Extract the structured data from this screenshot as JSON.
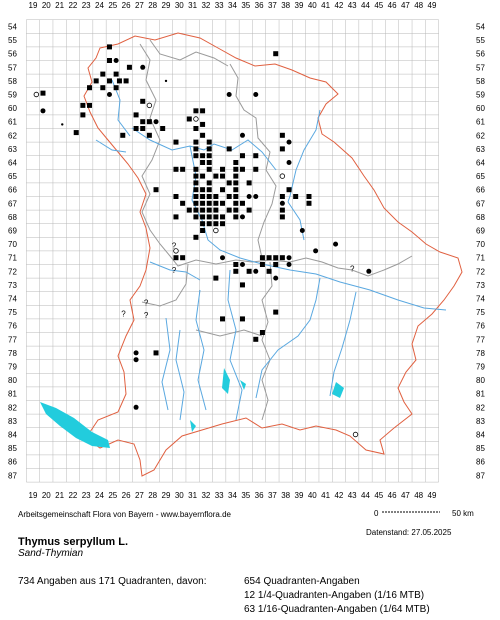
{
  "map": {
    "x_labels": [
      "19",
      "20",
      "21",
      "22",
      "23",
      "24",
      "25",
      "26",
      "27",
      "28",
      "29",
      "30",
      "31",
      "32",
      "33",
      "34",
      "35",
      "36",
      "37",
      "38",
      "39",
      "40",
      "41",
      "42",
      "43",
      "44",
      "45",
      "46",
      "47",
      "48",
      "49"
    ],
    "y_labels": [
      "54",
      "55",
      "56",
      "57",
      "58",
      "59",
      "60",
      "61",
      "62",
      "63",
      "64",
      "65",
      "66",
      "67",
      "68",
      "69",
      "70",
      "71",
      "72",
      "73",
      "74",
      "75",
      "76",
      "77",
      "78",
      "79",
      "80",
      "81",
      "82",
      "83",
      "84",
      "85",
      "86",
      "87"
    ],
    "colors": {
      "grid": "#b8b8b8",
      "border": "#e06040",
      "districts": "#9a9a9a",
      "rivers": "#5aa8e0",
      "lakes": "#22ccdd",
      "marker": "#000000"
    },
    "question_mark": "?",
    "scale": {
      "start": "0",
      "end": "50 km"
    },
    "markers": [
      {
        "x": 24.75,
        "y": 55.5,
        "t": "sq"
      },
      {
        "x": 37.25,
        "y": 56.0,
        "t": "sq"
      },
      {
        "x": 24.75,
        "y": 56.5,
        "t": "sq"
      },
      {
        "x": 25.25,
        "y": 56.5,
        "t": "dot"
      },
      {
        "x": 26.25,
        "y": 57.0,
        "t": "sq"
      },
      {
        "x": 27.25,
        "y": 57.0,
        "t": "dot"
      },
      {
        "x": 24.25,
        "y": 57.5,
        "t": "sq"
      },
      {
        "x": 25.25,
        "y": 57.5,
        "t": "sq"
      },
      {
        "x": 26.0,
        "y": 58.0,
        "t": "sq"
      },
      {
        "x": 23.75,
        "y": 58.0,
        "t": "sq"
      },
      {
        "x": 24.75,
        "y": 58.0,
        "t": "sq"
      },
      {
        "x": 25.5,
        "y": 58.0,
        "t": "sq"
      },
      {
        "x": 29.0,
        "y": 58.0,
        "t": "small"
      },
      {
        "x": 23.25,
        "y": 58.5,
        "t": "sq"
      },
      {
        "x": 24.25,
        "y": 58.5,
        "t": "sq"
      },
      {
        "x": 25.25,
        "y": 58.5,
        "t": "sq"
      },
      {
        "x": 19.75,
        "y": 58.9,
        "t": "sq"
      },
      {
        "x": 19.25,
        "y": 59.0,
        "t": "open"
      },
      {
        "x": 24.75,
        "y": 59.0,
        "t": "dot"
      },
      {
        "x": 33.75,
        "y": 59.0,
        "t": "dot"
      },
      {
        "x": 35.75,
        "y": 59.0,
        "t": "dot"
      },
      {
        "x": 27.25,
        "y": 59.5,
        "t": "sq"
      },
      {
        "x": 22.75,
        "y": 59.8,
        "t": "sq"
      },
      {
        "x": 23.25,
        "y": 59.8,
        "t": "sq"
      },
      {
        "x": 27.75,
        "y": 59.8,
        "t": "open"
      },
      {
        "x": 19.75,
        "y": 60.2,
        "t": "dot"
      },
      {
        "x": 22.75,
        "y": 60.5,
        "t": "sq"
      },
      {
        "x": 31.25,
        "y": 60.2,
        "t": "sq"
      },
      {
        "x": 31.75,
        "y": 60.2,
        "t": "sq"
      },
      {
        "x": 26.75,
        "y": 60.5,
        "t": "sq"
      },
      {
        "x": 30.75,
        "y": 60.8,
        "t": "sq"
      },
      {
        "x": 31.25,
        "y": 60.8,
        "t": "open"
      },
      {
        "x": 27.25,
        "y": 61.0,
        "t": "sq"
      },
      {
        "x": 27.75,
        "y": 61.0,
        "t": "sq"
      },
      {
        "x": 28.25,
        "y": 61.0,
        "t": "dot"
      },
      {
        "x": 21.2,
        "y": 61.2,
        "t": "small"
      },
      {
        "x": 31.75,
        "y": 61.2,
        "t": "sq"
      },
      {
        "x": 26.75,
        "y": 61.5,
        "t": "sq"
      },
      {
        "x": 27.25,
        "y": 61.5,
        "t": "sq"
      },
      {
        "x": 28.75,
        "y": 61.5,
        "t": "sq"
      },
      {
        "x": 31.25,
        "y": 61.5,
        "t": "sq"
      },
      {
        "x": 22.25,
        "y": 61.8,
        "t": "sq"
      },
      {
        "x": 27.75,
        "y": 62.0,
        "t": "sq"
      },
      {
        "x": 34.75,
        "y": 62.0,
        "t": "dot"
      },
      {
        "x": 31.75,
        "y": 62.0,
        "t": "sq"
      },
      {
        "x": 25.75,
        "y": 62.0,
        "t": "sq"
      },
      {
        "x": 37.75,
        "y": 62.0,
        "t": "sq"
      },
      {
        "x": 29.75,
        "y": 62.5,
        "t": "sq"
      },
      {
        "x": 31.25,
        "y": 62.5,
        "t": "sq"
      },
      {
        "x": 32.25,
        "y": 62.5,
        "t": "sq"
      },
      {
        "x": 38.25,
        "y": 62.5,
        "t": "dot"
      },
      {
        "x": 31.25,
        "y": 63.0,
        "t": "sq"
      },
      {
        "x": 32.25,
        "y": 63.0,
        "t": "sq"
      },
      {
        "x": 33.75,
        "y": 63.0,
        "t": "sq"
      },
      {
        "x": 37.75,
        "y": 63.0,
        "t": "sq"
      },
      {
        "x": 31.25,
        "y": 63.5,
        "t": "sq"
      },
      {
        "x": 31.75,
        "y": 63.5,
        "t": "sq"
      },
      {
        "x": 32.25,
        "y": 63.5,
        "t": "sq"
      },
      {
        "x": 34.75,
        "y": 63.5,
        "t": "sq"
      },
      {
        "x": 35.75,
        "y": 63.5,
        "t": "sq"
      },
      {
        "x": 31.75,
        "y": 64.0,
        "t": "sq"
      },
      {
        "x": 32.25,
        "y": 64.0,
        "t": "sq"
      },
      {
        "x": 34.25,
        "y": 64.0,
        "t": "sq"
      },
      {
        "x": 38.25,
        "y": 64.0,
        "t": "dot"
      },
      {
        "x": 29.75,
        "y": 64.5,
        "t": "sq"
      },
      {
        "x": 30.25,
        "y": 64.5,
        "t": "sq"
      },
      {
        "x": 31.25,
        "y": 64.5,
        "t": "sq"
      },
      {
        "x": 32.25,
        "y": 64.5,
        "t": "sq"
      },
      {
        "x": 33.25,
        "y": 64.5,
        "t": "sq"
      },
      {
        "x": 34.25,
        "y": 64.5,
        "t": "sq"
      },
      {
        "x": 34.75,
        "y": 64.5,
        "t": "sq"
      },
      {
        "x": 35.75,
        "y": 64.5,
        "t": "sq"
      },
      {
        "x": 31.25,
        "y": 65.0,
        "t": "sq"
      },
      {
        "x": 31.75,
        "y": 65.0,
        "t": "sq"
      },
      {
        "x": 32.75,
        "y": 65.0,
        "t": "sq"
      },
      {
        "x": 33.25,
        "y": 65.0,
        "t": "sq"
      },
      {
        "x": 34.25,
        "y": 65.0,
        "t": "sq"
      },
      {
        "x": 37.75,
        "y": 65.0,
        "t": "open"
      },
      {
        "x": 31.25,
        "y": 65.5,
        "t": "sq"
      },
      {
        "x": 32.25,
        "y": 65.5,
        "t": "sq"
      },
      {
        "x": 33.75,
        "y": 65.5,
        "t": "sq"
      },
      {
        "x": 34.25,
        "y": 65.5,
        "t": "sq"
      },
      {
        "x": 35.25,
        "y": 65.5,
        "t": "sq"
      },
      {
        "x": 28.25,
        "y": 66.0,
        "t": "sq"
      },
      {
        "x": 31.25,
        "y": 66.0,
        "t": "sq"
      },
      {
        "x": 31.75,
        "y": 66.0,
        "t": "sq"
      },
      {
        "x": 32.25,
        "y": 66.0,
        "t": "sq"
      },
      {
        "x": 33.25,
        "y": 66.0,
        "t": "sq"
      },
      {
        "x": 34.25,
        "y": 66.0,
        "t": "sq"
      },
      {
        "x": 38.25,
        "y": 66.0,
        "t": "sq"
      },
      {
        "x": 29.75,
        "y": 66.5,
        "t": "sq"
      },
      {
        "x": 31.25,
        "y": 66.5,
        "t": "sq"
      },
      {
        "x": 31.75,
        "y": 66.5,
        "t": "sq"
      },
      {
        "x": 32.25,
        "y": 66.5,
        "t": "sq"
      },
      {
        "x": 32.75,
        "y": 66.5,
        "t": "sq"
      },
      {
        "x": 33.75,
        "y": 66.5,
        "t": "sq"
      },
      {
        "x": 34.25,
        "y": 66.5,
        "t": "sq"
      },
      {
        "x": 35.25,
        "y": 66.5,
        "t": "dot"
      },
      {
        "x": 35.75,
        "y": 66.5,
        "t": "dot"
      },
      {
        "x": 37.75,
        "y": 66.5,
        "t": "sq"
      },
      {
        "x": 38.75,
        "y": 66.5,
        "t": "sq"
      },
      {
        "x": 39.75,
        "y": 66.5,
        "t": "sq"
      },
      {
        "x": 30.25,
        "y": 67.0,
        "t": "sq"
      },
      {
        "x": 31.25,
        "y": 67.0,
        "t": "sq"
      },
      {
        "x": 31.75,
        "y": 67.0,
        "t": "sq"
      },
      {
        "x": 32.25,
        "y": 67.0,
        "t": "sq"
      },
      {
        "x": 32.75,
        "y": 67.0,
        "t": "sq"
      },
      {
        "x": 33.25,
        "y": 67.0,
        "t": "sq"
      },
      {
        "x": 34.25,
        "y": 67.0,
        "t": "sq"
      },
      {
        "x": 34.75,
        "y": 67.0,
        "t": "sq"
      },
      {
        "x": 37.75,
        "y": 67.0,
        "t": "dot"
      },
      {
        "x": 39.75,
        "y": 67.0,
        "t": "sq"
      },
      {
        "x": 30.75,
        "y": 67.5,
        "t": "sq"
      },
      {
        "x": 31.25,
        "y": 67.5,
        "t": "sq"
      },
      {
        "x": 31.75,
        "y": 67.5,
        "t": "sq"
      },
      {
        "x": 32.25,
        "y": 67.5,
        "t": "sq"
      },
      {
        "x": 32.75,
        "y": 67.5,
        "t": "sq"
      },
      {
        "x": 33.75,
        "y": 67.5,
        "t": "sq"
      },
      {
        "x": 34.25,
        "y": 67.5,
        "t": "sq"
      },
      {
        "x": 35.25,
        "y": 67.5,
        "t": "sq"
      },
      {
        "x": 37.75,
        "y": 67.5,
        "t": "sq"
      },
      {
        "x": 29.75,
        "y": 68.0,
        "t": "sq"
      },
      {
        "x": 31.25,
        "y": 68.0,
        "t": "sq"
      },
      {
        "x": 31.75,
        "y": 68.0,
        "t": "sq"
      },
      {
        "x": 32.25,
        "y": 68.0,
        "t": "sq"
      },
      {
        "x": 32.75,
        "y": 68.0,
        "t": "sq"
      },
      {
        "x": 33.25,
        "y": 68.0,
        "t": "sq"
      },
      {
        "x": 34.25,
        "y": 68.0,
        "t": "sq"
      },
      {
        "x": 34.75,
        "y": 68.0,
        "t": "dot"
      },
      {
        "x": 37.75,
        "y": 68.0,
        "t": "sq"
      },
      {
        "x": 31.75,
        "y": 68.5,
        "t": "sq"
      },
      {
        "x": 32.25,
        "y": 68.5,
        "t": "sq"
      },
      {
        "x": 32.75,
        "y": 68.5,
        "t": "sq"
      },
      {
        "x": 33.25,
        "y": 68.5,
        "t": "sq"
      },
      {
        "x": 31.75,
        "y": 69.0,
        "t": "sq"
      },
      {
        "x": 32.75,
        "y": 69.0,
        "t": "open"
      },
      {
        "x": 39.25,
        "y": 69.0,
        "t": "dot"
      },
      {
        "x": 31.25,
        "y": 69.5,
        "t": "sq"
      },
      {
        "x": 41.75,
        "y": 70.0,
        "t": "dot"
      },
      {
        "x": 40.25,
        "y": 70.5,
        "t": "dot"
      },
      {
        "x": 29.75,
        "y": 70.5,
        "t": "open"
      },
      {
        "x": 29.75,
        "y": 71.0,
        "t": "sq"
      },
      {
        "x": 30.25,
        "y": 71.0,
        "t": "sq"
      },
      {
        "x": 33.25,
        "y": 71.0,
        "t": "dot"
      },
      {
        "x": 36.25,
        "y": 71.0,
        "t": "sq"
      },
      {
        "x": 36.75,
        "y": 71.0,
        "t": "sq"
      },
      {
        "x": 37.25,
        "y": 71.0,
        "t": "sq"
      },
      {
        "x": 37.75,
        "y": 71.0,
        "t": "sq"
      },
      {
        "x": 38.25,
        "y": 71.0,
        "t": "dot"
      },
      {
        "x": 34.25,
        "y": 71.5,
        "t": "sq"
      },
      {
        "x": 34.75,
        "y": 71.5,
        "t": "dot"
      },
      {
        "x": 36.25,
        "y": 71.5,
        "t": "sq"
      },
      {
        "x": 37.25,
        "y": 71.5,
        "t": "sq"
      },
      {
        "x": 38.25,
        "y": 71.5,
        "t": "dot"
      },
      {
        "x": 34.25,
        "y": 72.0,
        "t": "sq"
      },
      {
        "x": 35.25,
        "y": 72.0,
        "t": "sq"
      },
      {
        "x": 35.75,
        "y": 72.0,
        "t": "dot"
      },
      {
        "x": 36.75,
        "y": 72.0,
        "t": "sq"
      },
      {
        "x": 44.25,
        "y": 72.0,
        "t": "dot"
      },
      {
        "x": 32.75,
        "y": 72.5,
        "t": "sq"
      },
      {
        "x": 37.25,
        "y": 72.5,
        "t": "dot"
      },
      {
        "x": 34.75,
        "y": 73.0,
        "t": "sq"
      },
      {
        "x": 37.25,
        "y": 75.0,
        "t": "sq"
      },
      {
        "x": 33.25,
        "y": 75.5,
        "t": "sq"
      },
      {
        "x": 34.75,
        "y": 75.5,
        "t": "sq"
      },
      {
        "x": 36.25,
        "y": 76.5,
        "t": "sq"
      },
      {
        "x": 35.75,
        "y": 77.0,
        "t": "sq"
      },
      {
        "x": 26.75,
        "y": 78.0,
        "t": "dot"
      },
      {
        "x": 28.25,
        "y": 78.0,
        "t": "sq"
      },
      {
        "x": 26.75,
        "y": 78.5,
        "t": "dot"
      },
      {
        "x": 26.75,
        "y": 82.0,
        "t": "dot"
      },
      {
        "x": 43.25,
        "y": 84.0,
        "t": "open"
      }
    ],
    "question_marks": [
      {
        "x": 29.6,
        "y": 70.1
      },
      {
        "x": 29.6,
        "y": 71.9
      },
      {
        "x": 43.0,
        "y": 71.8
      },
      {
        "x": 27.5,
        "y": 74.3
      },
      {
        "x": 27.5,
        "y": 75.2
      },
      {
        "x": 25.8,
        "y": 75.1
      }
    ]
  },
  "credit": "Arbeitsgemeinschaft Flora von Bayern - www.bayernflora.de",
  "date": "Datenstand: 27.05.2025",
  "species": {
    "scientific": "Thymus serpyllum L.",
    "common": "Sand-Thymian"
  },
  "summary": "734 Angaben aus 171 Quadranten, davon:",
  "stats": [
    "654 Quadranten-Angaben",
    "12 1/4-Quadranten-Angaben (1/16 MTB)",
    "63 1/16-Quadranten-Angaben (1/64 MTB)"
  ]
}
